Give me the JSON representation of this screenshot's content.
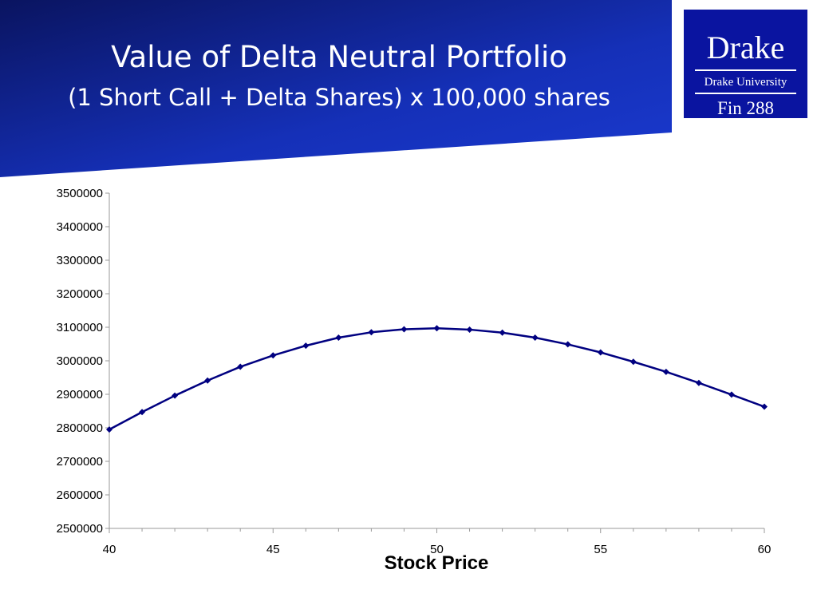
{
  "header": {
    "title": "Value of Delta Neutral Portfolio",
    "subtitle": "(1 Short Call + Delta Shares) x 100,000 shares"
  },
  "logo": {
    "name": "Drake",
    "university": "Drake University",
    "course": "Fin 288"
  },
  "colors": {
    "header_dark": "#0a1460",
    "header_light": "#1a3ad0",
    "logo_bg": "#0a14a0",
    "series": "#000080"
  },
  "chart_data": {
    "type": "line",
    "xlabel": "Stock Price",
    "ylabel": "",
    "xlim": [
      40,
      60
    ],
    "ylim": [
      2500000,
      3500000
    ],
    "xticks": [
      40,
      45,
      50,
      55,
      60
    ],
    "yticks": [
      2500000,
      2600000,
      2700000,
      2800000,
      2900000,
      3000000,
      3100000,
      3200000,
      3300000,
      3400000,
      3500000
    ],
    "grid": false,
    "legend": "none",
    "series": [
      {
        "x": [
          40,
          41,
          42,
          43,
          44,
          45,
          46,
          47,
          48,
          49,
          50,
          51,
          52,
          53,
          54,
          55,
          56,
          57,
          58,
          59,
          60
        ],
        "values": [
          2795000,
          2847000,
          2896000,
          2941000,
          2982000,
          3016000,
          3045000,
          3069000,
          3085000,
          3094000,
          3097000,
          3093000,
          3084000,
          3069000,
          3049000,
          3025000,
          2997000,
          2967000,
          2934000,
          2899000,
          2863000
        ]
      }
    ]
  }
}
